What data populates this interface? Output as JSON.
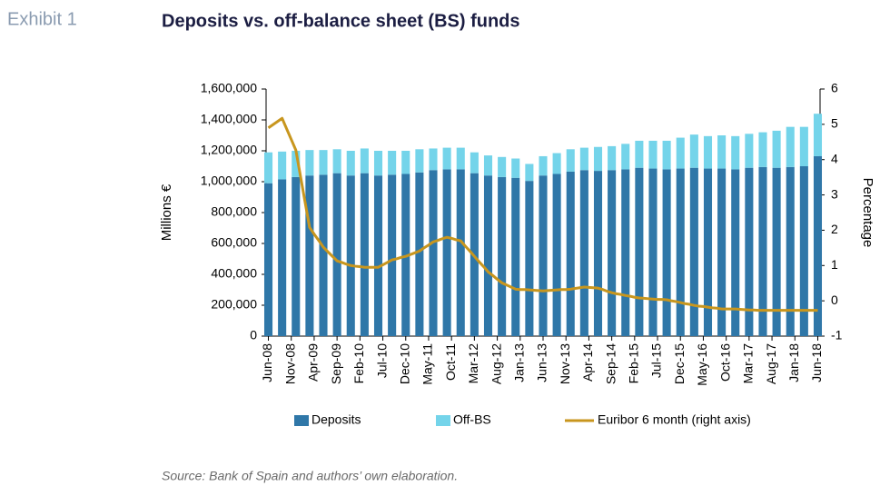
{
  "exhibit": "Exhibit 1",
  "source": "Source: Bank of Spain and authors’ own elaboration.",
  "chart_data": {
    "type": "bar",
    "title": "Deposits vs. off-balance sheet (BS)  funds",
    "y_label": "Millions €",
    "y2_label": "Percentage",
    "categories": [
      "Jun-08",
      null,
      null,
      null,
      null,
      "Nov-08",
      null,
      null,
      null,
      null,
      "Apr-09",
      null,
      null,
      null,
      null,
      "Sep-09",
      null,
      null,
      null,
      null,
      "Feb-10",
      null,
      null,
      null,
      null,
      "Jul-10",
      null,
      null,
      null,
      null,
      "Dec-10",
      null,
      null,
      null,
      null,
      "May-11",
      null,
      null,
      null,
      null,
      "Oct-11",
      null,
      null,
      null,
      null,
      "Mar-12",
      null,
      null,
      null,
      null,
      "Aug-12",
      null,
      null,
      null,
      null,
      "Jan-13",
      null,
      null,
      null,
      null,
      "Jun-13",
      null,
      null,
      null,
      null,
      "Nov-13",
      null,
      null,
      null,
      null,
      "Apr-14",
      null,
      null,
      null,
      null,
      "Sep-14",
      null,
      null,
      null,
      null,
      "Feb-15",
      null,
      null,
      null,
      null,
      "Jul-15",
      null,
      null,
      null,
      null,
      "Dec-15",
      null,
      null,
      null,
      null,
      "May-16",
      null,
      null,
      null,
      null,
      "Oct-16",
      null,
      null,
      null,
      null,
      "Mar-17",
      null,
      null,
      null,
      null,
      "Aug-17",
      null,
      null,
      null,
      null,
      "Jan-18",
      null,
      null,
      null,
      null,
      "Jun-18"
    ],
    "series": [
      {
        "name": "Deposits",
        "color": "#2f77a8",
        "stack": "funds",
        "values": [
          990000,
          null,
          null,
          1015000,
          null,
          null,
          1030000,
          null,
          null,
          1040000,
          null,
          null,
          1045000,
          null,
          null,
          1055000,
          null,
          null,
          1040000,
          null,
          null,
          1055000,
          null,
          null,
          1040000,
          null,
          null,
          1045000,
          null,
          null,
          1050000,
          null,
          null,
          1060000,
          null,
          null,
          1075000,
          null,
          null,
          1080000,
          null,
          null,
          1080000,
          null,
          null,
          1055000,
          null,
          null,
          1040000,
          null,
          null,
          1030000,
          null,
          null,
          1025000,
          null,
          null,
          1005000,
          null,
          null,
          1040000,
          null,
          null,
          1050000,
          null,
          null,
          1065000,
          null,
          null,
          1075000,
          null,
          null,
          1070000,
          null,
          null,
          1075000,
          null,
          null,
          1080000,
          null,
          null,
          1090000,
          null,
          null,
          1085000,
          null,
          null,
          1080000,
          null,
          null,
          1085000,
          null,
          null,
          1090000,
          null,
          null,
          1085000,
          null,
          null,
          1085000,
          null,
          null,
          1080000,
          null,
          null,
          1090000,
          null,
          null,
          1095000,
          null,
          null,
          1090000,
          null,
          null,
          1095000,
          null,
          null,
          1100000,
          null,
          null,
          1165000
        ]
      },
      {
        "name": "Off-BS",
        "color": "#74d4ea",
        "stack": "funds",
        "values": [
          200000,
          null,
          null,
          180000,
          null,
          null,
          170000,
          null,
          null,
          165000,
          null,
          null,
          160000,
          null,
          null,
          155000,
          null,
          null,
          160000,
          null,
          null,
          160000,
          null,
          null,
          160000,
          null,
          null,
          155000,
          null,
          null,
          150000,
          null,
          null,
          150000,
          null,
          null,
          140000,
          null,
          null,
          140000,
          null,
          null,
          140000,
          null,
          null,
          135000,
          null,
          null,
          130000,
          null,
          null,
          130000,
          null,
          null,
          125000,
          null,
          null,
          110000,
          null,
          null,
          125000,
          null,
          null,
          135000,
          null,
          null,
          145000,
          null,
          null,
          145000,
          null,
          null,
          155000,
          null,
          null,
          155000,
          null,
          null,
          165000,
          null,
          null,
          175000,
          null,
          null,
          180000,
          null,
          null,
          185000,
          null,
          null,
          200000,
          null,
          null,
          215000,
          null,
          null,
          210000,
          null,
          null,
          215000,
          null,
          null,
          215000,
          null,
          null,
          220000,
          null,
          null,
          225000,
          null,
          null,
          240000,
          null,
          null,
          260000,
          null,
          null,
          255000,
          null,
          null,
          275000
        ]
      },
      {
        "name": "Euribor 6 month (right axis)",
        "color": "#c8961e",
        "type": "line",
        "axis": "y2",
        "values": [
          4.9,
          4.99,
          5.08,
          5.17,
          4.87,
          4.57,
          4.27,
          3.54,
          2.81,
          2.08,
          1.89,
          1.71,
          1.52,
          1.39,
          1.26,
          1.13,
          1.09,
          1.04,
          1.0,
          0.98,
          0.97,
          0.95,
          0.95,
          0.95,
          0.95,
          1.02,
          1.09,
          1.16,
          1.19,
          1.23,
          1.26,
          1.31,
          1.36,
          1.41,
          1.5,
          1.58,
          1.67,
          1.71,
          1.76,
          1.8,
          1.77,
          1.73,
          1.7,
          1.55,
          1.41,
          1.26,
          1.11,
          0.97,
          0.82,
          0.72,
          0.61,
          0.51,
          0.45,
          0.39,
          0.33,
          0.32,
          0.32,
          0.31,
          0.3,
          0.29,
          0.28,
          0.29,
          0.3,
          0.31,
          0.32,
          0.32,
          0.33,
          0.35,
          0.37,
          0.39,
          0.38,
          0.37,
          0.36,
          0.32,
          0.27,
          0.23,
          0.2,
          0.18,
          0.15,
          0.13,
          0.1,
          0.08,
          0.07,
          0.06,
          0.05,
          0.04,
          0.04,
          0.03,
          0,
          -0.02,
          -0.05,
          -0.08,
          -0.1,
          -0.13,
          -0.15,
          -0.16,
          -0.18,
          -0.2,
          -0.21,
          -0.23,
          -0.23,
          -0.23,
          -0.23,
          -0.24,
          -0.25,
          -0.26,
          -0.26,
          -0.27,
          -0.27,
          -0.27,
          -0.27,
          -0.27,
          -0.27,
          -0.27,
          -0.27,
          -0.27,
          -0.27,
          -0.27,
          -0.27,
          -0.27,
          -0.27
        ]
      }
    ],
    "ylim": [
      0,
      1600000
    ],
    "yticks": [
      0,
      {
        "value": 200000,
        "label": "200,000"
      },
      {
        "value": 400000,
        "label": "400,000"
      },
      {
        "value": 600000,
        "label": "600,000"
      },
      {
        "value": 800000,
        "label": "800,000"
      },
      {
        "value": 1000000,
        "label": "1,000,000"
      },
      {
        "value": 1200000,
        "label": "1,200,000"
      },
      {
        "value": 1400000,
        "label": "1,400,000"
      },
      {
        "value": 1600000,
        "label": "1,600,000"
      }
    ],
    "y2lim": [
      -1,
      6
    ],
    "y2ticks": [
      -1,
      0,
      1,
      2,
      3,
      4,
      5,
      6
    ],
    "legend": "bottom"
  }
}
